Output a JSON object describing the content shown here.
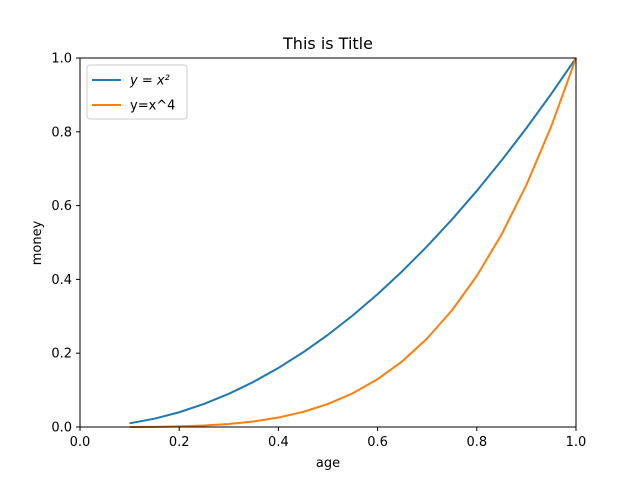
{
  "chart_data": {
    "type": "line",
    "title": "This is Title",
    "xlabel": "age",
    "ylabel": "money",
    "xlim": [
      0,
      1
    ],
    "ylim": [
      0,
      1
    ],
    "xticks": [
      0.0,
      0.2,
      0.4,
      0.6,
      0.8,
      1.0
    ],
    "yticks": [
      0.0,
      0.2,
      0.4,
      0.6,
      0.8,
      1.0
    ],
    "xtick_labels": [
      "0.0",
      "0.2",
      "0.4",
      "0.6",
      "0.8",
      "1.0"
    ],
    "ytick_labels": [
      "0.0",
      "0.2",
      "0.4",
      "0.6",
      "0.8",
      "1.0"
    ],
    "grid": false,
    "legend_position": "top-left",
    "x": [
      0.1,
      0.15,
      0.2,
      0.25,
      0.3,
      0.35,
      0.4,
      0.45,
      0.5,
      0.55,
      0.6,
      0.65,
      0.7,
      0.75,
      0.8,
      0.85,
      0.9,
      0.95,
      1.0
    ],
    "series": [
      {
        "name": "y = x²",
        "color": "#1f77b4",
        "values": [
          0.01,
          0.0225,
          0.04,
          0.0625,
          0.09,
          0.1225,
          0.16,
          0.2025,
          0.25,
          0.3025,
          0.36,
          0.4225,
          0.49,
          0.5625,
          0.64,
          0.7225,
          0.81,
          0.9025,
          1.0
        ]
      },
      {
        "name": "y=x^4",
        "color": "#ff7f0e",
        "values": [
          0.0001,
          0.0005,
          0.0016,
          0.0039,
          0.0081,
          0.015,
          0.0256,
          0.041,
          0.0625,
          0.0915,
          0.1296,
          0.1785,
          0.2401,
          0.3164,
          0.4096,
          0.522,
          0.6561,
          0.8145,
          1.0
        ]
      }
    ]
  }
}
